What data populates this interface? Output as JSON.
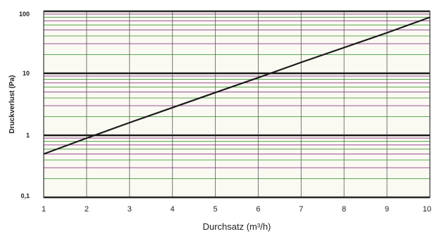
{
  "chart_data": {
    "type": "line",
    "title": "",
    "xlabel": "Durchsatz (m³/h)",
    "ylabel": "Druckverlust (Pa)",
    "x_scale": "linear",
    "y_scale": "log",
    "xlim": [
      1,
      10
    ],
    "ylim": [
      0.1,
      100
    ],
    "x_ticks": [
      1,
      2,
      3,
      4,
      5,
      6,
      7,
      8,
      9,
      10
    ],
    "x_tick_labels": [
      "1",
      "2",
      "3",
      "4",
      "5",
      "6",
      "7",
      "8",
      "9",
      "10"
    ],
    "y_ticks": [
      0.1,
      1,
      10,
      100
    ],
    "y_tick_labels": [
      "0,1",
      "1",
      "10",
      "100"
    ],
    "grid": true,
    "legend": "none",
    "series": [
      {
        "x": [
          1,
          2,
          3,
          4,
          5,
          6,
          7,
          8,
          9,
          10
        ],
        "y": [
          0.5,
          0.9,
          1.6,
          2.8,
          4.9,
          8.5,
          15,
          26,
          45,
          80
        ]
      }
    ],
    "colors": {
      "major_grid": "#1a1a1a",
      "minor_grid_green": "#3f9a3a",
      "minor_grid_purple": "#8a2f8a",
      "vertical_grid": "#555555",
      "line": "#1a1a1a",
      "frame": "#333333"
    }
  }
}
